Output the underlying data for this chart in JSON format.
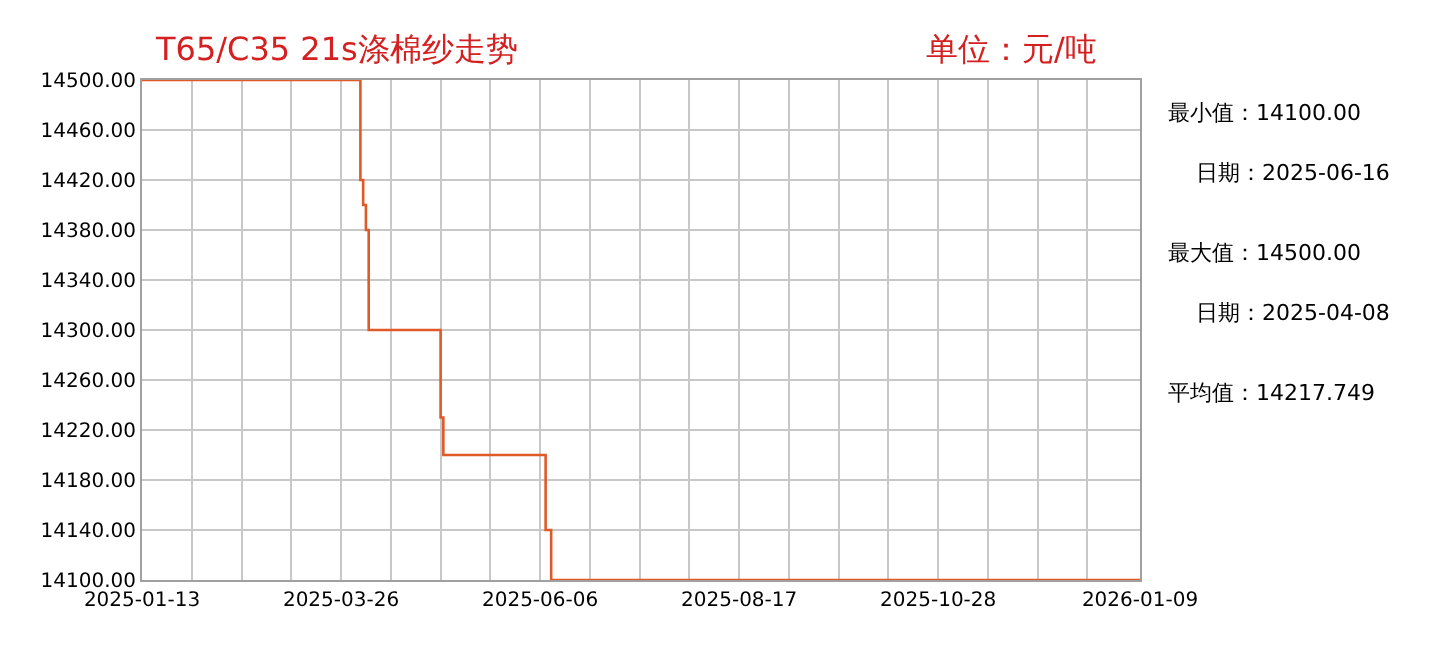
{
  "chart_data": {
    "type": "step",
    "title": "T65/C35 21s涤棉纱走势",
    "subtitle": "单位：元/吨",
    "x": [
      "2025-01-13",
      "2025-04-02",
      "2025-04-03",
      "2025-04-04",
      "2025-04-05",
      "2025-05-01",
      "2025-05-02",
      "2025-06-08",
      "2025-06-10",
      "2026-01-09"
    ],
    "series": [
      {
        "color": "#e05a28",
        "values": [
          14500,
          14420,
          14400,
          14380,
          14300,
          14230,
          14200,
          14140,
          14100,
          14100
        ]
      }
    ],
    "xlim": [
      "2025-01-13",
      "2026-01-09"
    ],
    "xticks": [
      {
        "value": "2025-01-13",
        "label": "2025-01-13"
      },
      {
        "value": "2025-01-31",
        "label": null
      },
      {
        "value": "2025-02-18",
        "label": null
      },
      {
        "value": "2025-03-08",
        "label": null
      },
      {
        "value": "2025-03-26",
        "label": "2025-03-26"
      },
      {
        "value": "2025-04-13",
        "label": null
      },
      {
        "value": "2025-05-01",
        "label": null
      },
      {
        "value": "2025-05-19",
        "label": null
      },
      {
        "value": "2025-06-06",
        "label": "2025-06-06"
      },
      {
        "value": "2025-06-24",
        "label": null
      },
      {
        "value": "2025-07-12",
        "label": null
      },
      {
        "value": "2025-07-30",
        "label": null
      },
      {
        "value": "2025-08-17",
        "label": "2025-08-17"
      },
      {
        "value": "2025-09-04",
        "label": null
      },
      {
        "value": "2025-09-22",
        "label": null
      },
      {
        "value": "2025-10-10",
        "label": null
      },
      {
        "value": "2025-10-28",
        "label": "2025-10-28"
      },
      {
        "value": "2025-11-15",
        "label": null
      },
      {
        "value": "2025-12-03",
        "label": null
      },
      {
        "value": "2025-12-21",
        "label": null
      },
      {
        "value": "2026-01-09",
        "label": "2026-01-09"
      }
    ],
    "ylim": [
      14100,
      14500
    ],
    "yticks": [
      {
        "value": 14100,
        "label": "14100.00"
      },
      {
        "value": 14140,
        "label": "14140.00"
      },
      {
        "value": 14180,
        "label": "14180.00"
      },
      {
        "value": 14220,
        "label": "14220.00"
      },
      {
        "value": 14260,
        "label": "14260.00"
      },
      {
        "value": 14300,
        "label": "14300.00"
      },
      {
        "value": 14340,
        "label": "14340.00"
      },
      {
        "value": 14380,
        "label": "14380.00"
      },
      {
        "value": 14420,
        "label": "14420.00"
      },
      {
        "value": 14460,
        "label": "14460.00"
      },
      {
        "value": 14500,
        "label": "14500.00"
      }
    ],
    "grid": true,
    "annotations": [
      "最小值：14100.00",
      "日期：2025-06-16",
      "最大值：14500.00",
      "日期：2025-04-08",
      "平均值：14217.749"
    ]
  }
}
